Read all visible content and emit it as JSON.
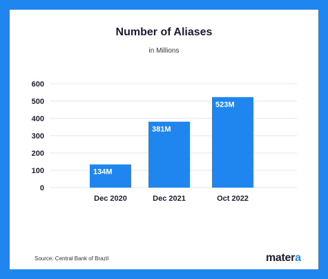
{
  "chart_data": {
    "type": "bar",
    "title": "Number of Aliases",
    "subtitle": "in Millions",
    "categories": [
      "Dec 2020",
      "Dec 2021",
      "Oct 2022"
    ],
    "values": [
      134,
      381,
      523
    ],
    "data_labels": [
      "134M",
      "381M",
      "523M"
    ],
    "yticks": [
      0,
      100,
      200,
      300,
      400,
      500,
      600
    ],
    "ylim": [
      0,
      600
    ],
    "grid": true,
    "bar_color": "#1f86f0"
  },
  "footer": {
    "source": "Source: Central Bank of Brazil",
    "logo_main": "mater",
    "logo_accent": "a"
  },
  "colors": {
    "frame": "#1f86f0",
    "bar": "#1f86f0",
    "gridline": "#e6e6e6",
    "text_dark": "#1b1b2f"
  }
}
